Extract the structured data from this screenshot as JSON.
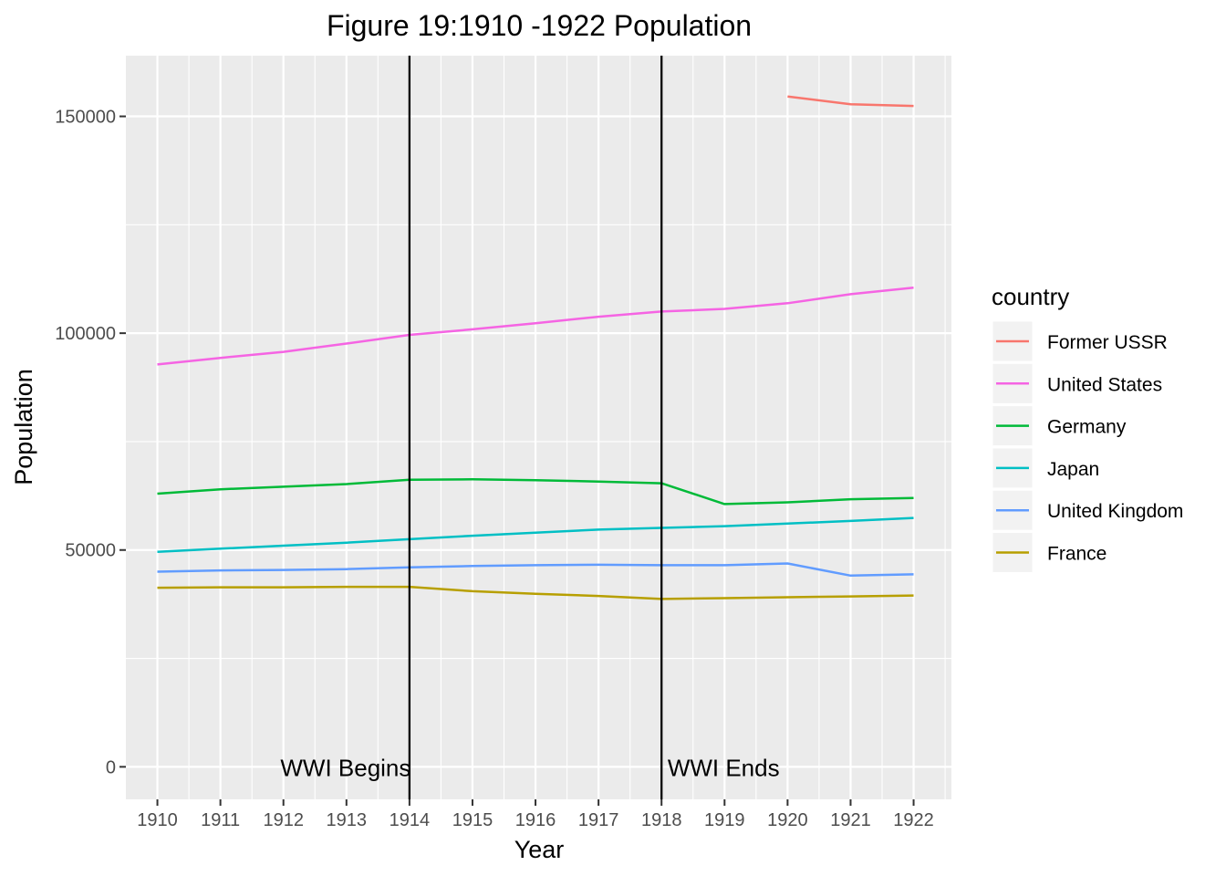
{
  "chart_data": {
    "type": "line",
    "title": "Figure 19:1910 -1922 Population",
    "xlabel": "Year",
    "ylabel": "Population",
    "x": [
      1910,
      1911,
      1912,
      1913,
      1914,
      1915,
      1916,
      1917,
      1918,
      1919,
      1920,
      1921,
      1922
    ],
    "x_tick_labels": [
      "1910",
      "1911",
      "1912",
      "1913",
      "1914",
      "1915",
      "1916",
      "1917",
      "1918",
      "1919",
      "1920",
      "1921",
      "1922"
    ],
    "xlim": [
      1909.5,
      1922.6
    ],
    "ylim": [
      -7500,
      164000
    ],
    "y_ticks": [
      0,
      50000,
      100000,
      150000
    ],
    "y_tick_labels": [
      "0",
      "50000",
      "100000",
      "150000"
    ],
    "grid": true,
    "legend": {
      "title": "country",
      "position": "right"
    },
    "series": [
      {
        "name": "Former USSR",
        "color": "#F8766D",
        "values": [
          null,
          null,
          null,
          null,
          null,
          null,
          null,
          null,
          null,
          null,
          154600,
          152800,
          152400
        ]
      },
      {
        "name": "United States",
        "color": "#F564E3",
        "values": [
          92800,
          94300,
          95700,
          97600,
          99600,
          100900,
          102300,
          103800,
          105000,
          105600,
          106900,
          109000,
          110500
        ]
      },
      {
        "name": "Germany",
        "color": "#00BA38",
        "values": [
          63000,
          64000,
          64600,
          65200,
          66200,
          66300,
          66100,
          65800,
          65400,
          60600,
          61000,
          61700,
          62000
        ]
      },
      {
        "name": "Japan",
        "color": "#00BFC4",
        "values": [
          49600,
          50300,
          51000,
          51700,
          52500,
          53300,
          54000,
          54700,
          55100,
          55500,
          56100,
          56700,
          57400
        ]
      },
      {
        "name": "United Kingdom",
        "color": "#619CFF",
        "values": [
          45000,
          45300,
          45400,
          45600,
          46000,
          46300,
          46500,
          46600,
          46500,
          46500,
          46900,
          44100,
          44400
        ]
      },
      {
        "name": "France",
        "color": "#B79F00",
        "values": [
          41300,
          41400,
          41400,
          41500,
          41500,
          40500,
          39900,
          39400,
          38700,
          38900,
          39100,
          39300,
          39500
        ]
      }
    ],
    "vlines": [
      {
        "x": 1914,
        "label": "WWI Begins"
      },
      {
        "x": 1918,
        "label": "WWI Ends"
      }
    ]
  }
}
